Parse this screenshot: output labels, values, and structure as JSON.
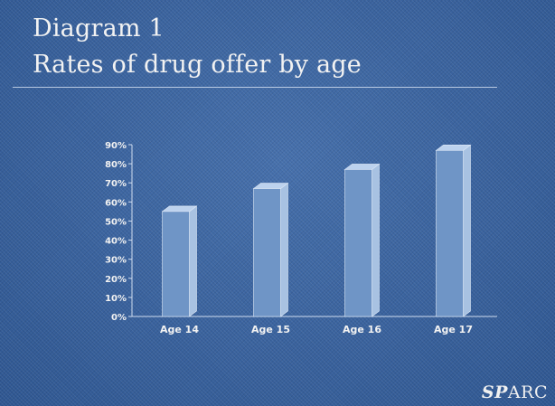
{
  "slide": {
    "title_line1": "Diagram 1",
    "title_line2": "Rates of drug offer by age",
    "logo_italic": "SP",
    "logo_rest": "ARC"
  },
  "colors": {
    "background": "#3a64a0",
    "bar_front": "#6f95c6",
    "bar_side": "#a8c2e2",
    "bar_top": "#bcd2ee",
    "text": "#f2f2f2",
    "axis": "#cfdcef"
  },
  "chart_data": {
    "type": "bar",
    "title": "",
    "xlabel": "",
    "ylabel": "",
    "categories": [
      "Age 14",
      "Age 15",
      "Age 16",
      "Age 17"
    ],
    "values": [
      55,
      67,
      77,
      87
    ],
    "unit": "%",
    "ylim": [
      0,
      90
    ],
    "yticks": [
      "0%",
      "10%",
      "20%",
      "30%",
      "40%",
      "50%",
      "60%",
      "70%",
      "80%",
      "90%"
    ],
    "grid": false,
    "legend": "none",
    "style": "3d-column"
  }
}
